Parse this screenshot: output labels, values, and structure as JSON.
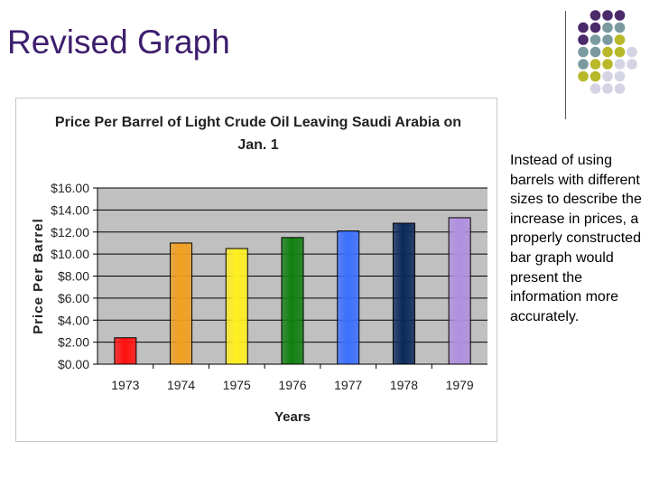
{
  "slide": {
    "title": "Revised Graph",
    "note": "Instead of using barrels with different sizes to describe the increase in prices, a properly constructed bar graph would present the information more accurately."
  },
  "decoration": {
    "dot_colors": {
      "purple": "#4a2a6b",
      "teal": "#7a9aa0",
      "olive": "#b8b82a",
      "light": "#d4d4e4"
    }
  },
  "chart_data": {
    "type": "bar",
    "title_lines": [
      "Price Per Barrel of Light Crude Oil Leaving Saudi Arabia on",
      "Jan. 1"
    ],
    "xlabel": "Years",
    "ylabel": "Price Per Barrel",
    "categories": [
      "1973",
      "1974",
      "1975",
      "1976",
      "1977",
      "1978",
      "1979"
    ],
    "values": [
      2.4,
      11.0,
      10.5,
      11.5,
      12.1,
      12.8,
      13.3
    ],
    "ylim": [
      0,
      16
    ],
    "yticks": [
      0,
      2,
      4,
      6,
      8,
      10,
      12,
      14,
      16
    ],
    "ytick_labels": [
      "$0.00",
      "$2.00",
      "$4.00",
      "$6.00",
      "$8.00",
      "$10.00",
      "$12.00",
      "$14.00",
      "$16.00"
    ],
    "grid": true,
    "plot_background": "#c0c0c0",
    "bar_colors": [
      "#ff1010",
      "#f0a020",
      "#fff020",
      "#108010",
      "#3a70ff",
      "#0a2a5a",
      "#b090e0"
    ]
  }
}
